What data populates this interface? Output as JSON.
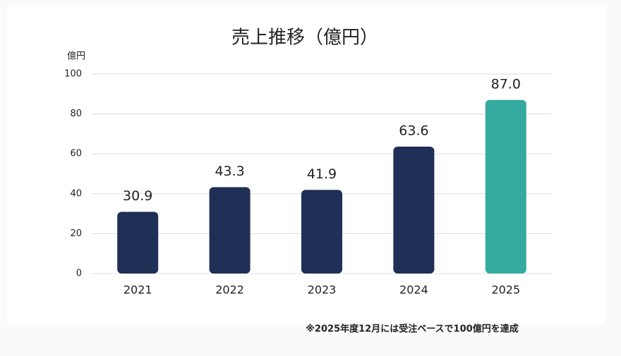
{
  "chart_data": {
    "type": "bar",
    "title": "売上推移（億円）",
    "y_unit": "億円",
    "categories": [
      "2021",
      "2022",
      "2023",
      "2024",
      "2025"
    ],
    "values": [
      30.9,
      43.3,
      41.9,
      63.6,
      87.0
    ],
    "value_labels": [
      "30.9",
      "43.3",
      "41.9",
      "63.6",
      "87.0"
    ],
    "colors": [
      "#1f2f55",
      "#1f2f55",
      "#1f2f55",
      "#1f2f55",
      "#35aba0"
    ],
    "ylim": [
      0,
      100
    ],
    "yticks": [
      0,
      20,
      40,
      60,
      80,
      100
    ],
    "grid": true,
    "footnote": "※2025年度12月には受注ベースで100億円を達成"
  }
}
